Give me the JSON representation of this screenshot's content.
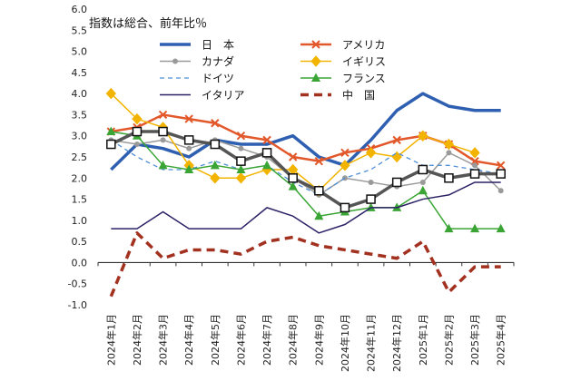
{
  "chart_data": {
    "type": "line",
    "ylabel": "指数は総合、前年比％",
    "ylim": [
      -1.0,
      6.0
    ],
    "yticks": [
      "-1.0",
      "-0.5",
      "0.0",
      "0.5",
      "1.0",
      "1.5",
      "2.0",
      "2.5",
      "3.0",
      "3.5",
      "4.0",
      "4.5",
      "5.0",
      "5.5",
      "6.0"
    ],
    "categories": [
      "2024年1月",
      "2024年2月",
      "2024年3月",
      "2024年4月",
      "2024年5月",
      "2024年6月",
      "2024年7月",
      "2024年8月",
      "2024年9月",
      "2024年10月",
      "2024年11月",
      "2024年12月",
      "2025年1月",
      "2025年2月",
      "2025年3月",
      "2025年4月"
    ],
    "grid": false,
    "legend_position": "top",
    "series": [
      {
        "name": "日　本",
        "color": "#2e5fb0",
        "style": "solid",
        "width": 3.5,
        "marker": "none",
        "values": [
          2.2,
          2.8,
          2.7,
          2.5,
          2.9,
          2.8,
          2.8,
          3.0,
          2.5,
          2.3,
          2.9,
          3.6,
          4.0,
          3.7,
          3.6,
          3.6
        ]
      },
      {
        "name": "アメリカ",
        "color": "#e2582b",
        "style": "solid",
        "width": 2.5,
        "marker": "x",
        "values": [
          3.1,
          3.2,
          3.5,
          3.4,
          3.3,
          3.0,
          2.9,
          2.5,
          2.4,
          2.6,
          2.7,
          2.9,
          3.0,
          2.8,
          2.4,
          2.3
        ]
      },
      {
        "name": "カナダ",
        "color": "#9a9a9a",
        "style": "solid",
        "width": 1.5,
        "marker": "circle",
        "values": [
          2.9,
          2.8,
          2.9,
          2.7,
          2.9,
          2.7,
          2.5,
          2.0,
          1.6,
          2.0,
          1.9,
          1.8,
          1.9,
          2.6,
          2.3,
          1.7
        ]
      },
      {
        "name": "イギリス",
        "color": "#f2b400",
        "style": "solid",
        "width": 1.5,
        "marker": "diamond",
        "values": [
          4.0,
          3.4,
          3.2,
          2.3,
          2.0,
          2.0,
          2.2,
          2.2,
          1.7,
          2.3,
          2.6,
          2.5,
          3.0,
          2.8,
          2.6,
          null
        ]
      },
      {
        "name": "ドイツ",
        "color": "#4f8fd8",
        "style": "dashed",
        "width": 1.3,
        "marker": "none",
        "values": [
          2.9,
          2.5,
          2.2,
          2.2,
          2.4,
          2.2,
          2.3,
          1.9,
          1.6,
          2.0,
          2.2,
          2.6,
          2.3,
          2.3,
          2.2,
          2.1
        ]
      },
      {
        "name": "フランス",
        "color": "#3aa535",
        "style": "solid",
        "width": 1.5,
        "marker": "triangle",
        "values": [
          3.1,
          3.0,
          2.3,
          2.2,
          2.3,
          2.2,
          2.3,
          1.8,
          1.1,
          1.2,
          1.3,
          1.3,
          1.7,
          0.8,
          0.8,
          0.8
        ]
      },
      {
        "name": "イタリア",
        "color": "#2b2266",
        "style": "solid",
        "width": 1.5,
        "marker": "none",
        "values": [
          0.8,
          0.8,
          1.2,
          0.8,
          0.8,
          0.8,
          1.3,
          1.1,
          0.7,
          0.9,
          1.3,
          1.3,
          1.5,
          1.6,
          1.9,
          1.9
        ]
      },
      {
        "name": "中　国",
        "color": "#a3311f",
        "style": "dashed-thick",
        "width": 3.5,
        "marker": "none",
        "values": [
          -0.8,
          0.7,
          0.1,
          0.3,
          0.3,
          0.2,
          0.5,
          0.6,
          0.4,
          0.3,
          0.2,
          0.1,
          0.5,
          -0.7,
          -0.1,
          -0.1
        ]
      },
      {
        "name": "",
        "color": "#555555",
        "style": "solid",
        "width": 3.5,
        "marker": "square",
        "legend": false,
        "values": [
          2.8,
          3.1,
          3.1,
          2.9,
          2.8,
          2.4,
          2.6,
          2.0,
          1.7,
          1.3,
          1.5,
          1.9,
          2.2,
          2.0,
          2.1,
          2.1
        ]
      }
    ]
  }
}
